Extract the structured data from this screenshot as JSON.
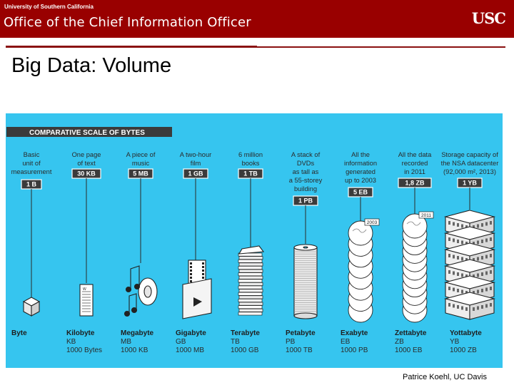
{
  "header": {
    "university": "University of Southern California",
    "office": "Office of the Chief Information Officer",
    "logo": "USC"
  },
  "slide": {
    "title": "Big Data: Volume",
    "credit": "Patrice Koehl, UC Davis"
  },
  "colors": {
    "header_bg": "#990000",
    "figure_bg": "#36c5ef",
    "banner_bg": "#3b3b3b",
    "badge_bg": "#3b3b3b"
  },
  "figure": {
    "banner": "COMPARATIVE SCALE OF BYTES",
    "units": [
      {
        "desc": [
          "Basic",
          "unit of",
          "measurement"
        ],
        "size": "1 B",
        "name": "Byte",
        "abbr": "",
        "equiv": "",
        "icon": "cube-icon"
      },
      {
        "desc": [
          "One page",
          "of text"
        ],
        "size": "30 KB",
        "name": "Kilobyte",
        "abbr": "KB",
        "equiv": "1000 Bytes",
        "icon": "page-icon"
      },
      {
        "desc": [
          "A piece of",
          "music"
        ],
        "size": "5 MB",
        "name": "Megabyte",
        "abbr": "MB",
        "equiv": "1000 KB",
        "icon": "music-icon"
      },
      {
        "desc": [
          "A two-hour",
          "film"
        ],
        "size": "1 GB",
        "name": "Gigabyte",
        "abbr": "GB",
        "equiv": "1000 MB",
        "icon": "film-icon"
      },
      {
        "desc": [
          "6 million",
          "books"
        ],
        "size": "1 TB",
        "name": "Terabyte",
        "abbr": "TB",
        "equiv": "1000 GB",
        "icon": "books-icon"
      },
      {
        "desc": [
          "A stack of",
          "DVDs",
          "as tall as",
          "a 55-storey",
          "building"
        ],
        "size": "1 PB",
        "name": "Petabyte",
        "abbr": "PB",
        "equiv": "1000 TB",
        "icon": "dvd-stack-icon"
      },
      {
        "desc": [
          "All the",
          "information",
          "generated",
          "up to 2003"
        ],
        "size": "5 EB",
        "name": "Exabyte",
        "abbr": "EB",
        "equiv": "1000 PB",
        "icon": "globe-stack-icon",
        "year": "2003"
      },
      {
        "desc": [
          "All the data",
          "recorded",
          "in 2011"
        ],
        "size": "1,8 ZB",
        "name": "Zettabyte",
        "abbr": "ZB",
        "equiv": "1000 EB",
        "icon": "globe-tower-icon",
        "year": "2011"
      },
      {
        "desc": [
          "Storage capacity of",
          "the NSA datacenter",
          "(92,000 m², 2013)"
        ],
        "size": "1 YB",
        "name": "Yottabyte",
        "abbr": "YB",
        "equiv": "1000 ZB",
        "icon": "datacenter-icon"
      }
    ]
  }
}
